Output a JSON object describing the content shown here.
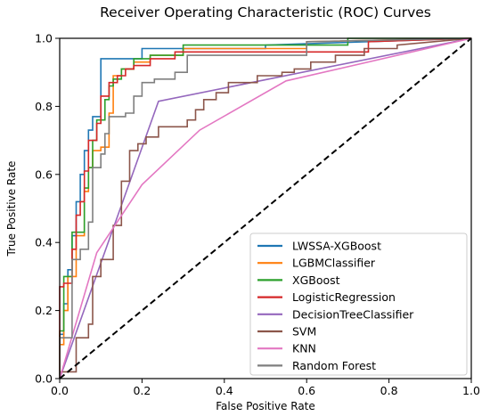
{
  "chart_data": {
    "type": "line",
    "title": "Receiver Operating Characteristic (ROC) Curves",
    "xlabel": "False Positive Rate",
    "ylabel": "True Positive Rate",
    "xlim": [
      0.0,
      1.0
    ],
    "ylim": [
      0.0,
      1.0
    ],
    "x_ticks": [
      "0.0",
      "0.2",
      "0.4",
      "0.6",
      "0.8",
      "1.0"
    ],
    "y_ticks": [
      "0.0",
      "0.2",
      "0.4",
      "0.6",
      "0.8",
      "1.0"
    ],
    "grid": false,
    "legend_position": "lower-right",
    "chance_line": {
      "points": [
        [
          0,
          0
        ],
        [
          1,
          1
        ]
      ],
      "style": "dashed",
      "color": "#000000"
    },
    "series": [
      {
        "name": "LWSSA-XGBoost",
        "color": "#1f77b4",
        "points": [
          [
            0,
            0
          ],
          [
            0,
            0.13
          ],
          [
            0.01,
            0.13
          ],
          [
            0.01,
            0.22
          ],
          [
            0.02,
            0.22
          ],
          [
            0.02,
            0.32
          ],
          [
            0.03,
            0.32
          ],
          [
            0.03,
            0.42
          ],
          [
            0.04,
            0.42
          ],
          [
            0.04,
            0.52
          ],
          [
            0.05,
            0.52
          ],
          [
            0.05,
            0.6
          ],
          [
            0.06,
            0.6
          ],
          [
            0.06,
            0.67
          ],
          [
            0.07,
            0.67
          ],
          [
            0.07,
            0.73
          ],
          [
            0.08,
            0.73
          ],
          [
            0.08,
            0.77
          ],
          [
            0.1,
            0.77
          ],
          [
            0.1,
            0.94
          ],
          [
            0.2,
            0.94
          ],
          [
            0.2,
            0.97
          ],
          [
            0.5,
            0.97
          ],
          [
            0.5,
            0.98
          ],
          [
            1,
            1
          ]
        ]
      },
      {
        "name": "LGBMClassifier",
        "color": "#ff7f0e",
        "points": [
          [
            0,
            0
          ],
          [
            0,
            0.1
          ],
          [
            0.01,
            0.1
          ],
          [
            0.01,
            0.2
          ],
          [
            0.02,
            0.2
          ],
          [
            0.02,
            0.3
          ],
          [
            0.04,
            0.3
          ],
          [
            0.04,
            0.42
          ],
          [
            0.06,
            0.42
          ],
          [
            0.06,
            0.55
          ],
          [
            0.07,
            0.55
          ],
          [
            0.07,
            0.62
          ],
          [
            0.08,
            0.62
          ],
          [
            0.08,
            0.67
          ],
          [
            0.1,
            0.67
          ],
          [
            0.1,
            0.68
          ],
          [
            0.12,
            0.68
          ],
          [
            0.12,
            0.78
          ],
          [
            0.13,
            0.78
          ],
          [
            0.13,
            0.89
          ],
          [
            0.15,
            0.89
          ],
          [
            0.15,
            0.91
          ],
          [
            0.18,
            0.91
          ],
          [
            0.18,
            0.93
          ],
          [
            0.22,
            0.93
          ],
          [
            0.22,
            0.95
          ],
          [
            0.3,
            0.95
          ],
          [
            0.3,
            0.97
          ],
          [
            0.6,
            0.97
          ],
          [
            0.6,
            0.99
          ],
          [
            1,
            1
          ]
        ]
      },
      {
        "name": "XGBoost",
        "color": "#2ca02c",
        "points": [
          [
            0,
            0
          ],
          [
            0,
            0.14
          ],
          [
            0.01,
            0.14
          ],
          [
            0.01,
            0.3
          ],
          [
            0.03,
            0.3
          ],
          [
            0.03,
            0.43
          ],
          [
            0.06,
            0.43
          ],
          [
            0.06,
            0.56
          ],
          [
            0.07,
            0.56
          ],
          [
            0.07,
            0.62
          ],
          [
            0.08,
            0.62
          ],
          [
            0.08,
            0.7
          ],
          [
            0.09,
            0.7
          ],
          [
            0.09,
            0.76
          ],
          [
            0.11,
            0.76
          ],
          [
            0.11,
            0.82
          ],
          [
            0.12,
            0.82
          ],
          [
            0.12,
            0.86
          ],
          [
            0.13,
            0.86
          ],
          [
            0.13,
            0.88
          ],
          [
            0.15,
            0.88
          ],
          [
            0.15,
            0.91
          ],
          [
            0.18,
            0.91
          ],
          [
            0.18,
            0.94
          ],
          [
            0.22,
            0.94
          ],
          [
            0.22,
            0.95
          ],
          [
            0.3,
            0.95
          ],
          [
            0.3,
            0.98
          ],
          [
            0.7,
            0.98
          ],
          [
            0.7,
            1.0
          ],
          [
            1,
            1
          ]
        ]
      },
      {
        "name": "LogisticRegression",
        "color": "#d62728",
        "points": [
          [
            0,
            0
          ],
          [
            0,
            0.27
          ],
          [
            0.01,
            0.27
          ],
          [
            0.01,
            0.28
          ],
          [
            0.03,
            0.28
          ],
          [
            0.03,
            0.38
          ],
          [
            0.04,
            0.38
          ],
          [
            0.04,
            0.48
          ],
          [
            0.05,
            0.48
          ],
          [
            0.05,
            0.52
          ],
          [
            0.06,
            0.52
          ],
          [
            0.06,
            0.61
          ],
          [
            0.07,
            0.61
          ],
          [
            0.07,
            0.7
          ],
          [
            0.09,
            0.7
          ],
          [
            0.09,
            0.75
          ],
          [
            0.1,
            0.75
          ],
          [
            0.1,
            0.83
          ],
          [
            0.12,
            0.83
          ],
          [
            0.12,
            0.87
          ],
          [
            0.14,
            0.87
          ],
          [
            0.14,
            0.89
          ],
          [
            0.16,
            0.89
          ],
          [
            0.16,
            0.91
          ],
          [
            0.18,
            0.91
          ],
          [
            0.18,
            0.92
          ],
          [
            0.22,
            0.92
          ],
          [
            0.22,
            0.94
          ],
          [
            0.28,
            0.94
          ],
          [
            0.28,
            0.96
          ],
          [
            0.75,
            0.96
          ],
          [
            0.75,
            0.99
          ],
          [
            1,
            1
          ]
        ]
      },
      {
        "name": "DecisionTreeClassifier",
        "color": "#9467bd",
        "points": [
          [
            0,
            0
          ],
          [
            0.24,
            0.815
          ],
          [
            1,
            1
          ]
        ]
      },
      {
        "name": "SVM",
        "color": "#8c564b",
        "points": [
          [
            0,
            0
          ],
          [
            0,
            0.02
          ],
          [
            0.04,
            0.02
          ],
          [
            0.04,
            0.12
          ],
          [
            0.07,
            0.12
          ],
          [
            0.07,
            0.16
          ],
          [
            0.08,
            0.16
          ],
          [
            0.08,
            0.3
          ],
          [
            0.1,
            0.3
          ],
          [
            0.1,
            0.35
          ],
          [
            0.13,
            0.35
          ],
          [
            0.13,
            0.45
          ],
          [
            0.15,
            0.45
          ],
          [
            0.15,
            0.58
          ],
          [
            0.17,
            0.58
          ],
          [
            0.17,
            0.67
          ],
          [
            0.19,
            0.67
          ],
          [
            0.19,
            0.69
          ],
          [
            0.21,
            0.69
          ],
          [
            0.21,
            0.71
          ],
          [
            0.24,
            0.71
          ],
          [
            0.24,
            0.74
          ],
          [
            0.31,
            0.74
          ],
          [
            0.31,
            0.76
          ],
          [
            0.33,
            0.76
          ],
          [
            0.33,
            0.79
          ],
          [
            0.35,
            0.79
          ],
          [
            0.35,
            0.82
          ],
          [
            0.38,
            0.82
          ],
          [
            0.38,
            0.84
          ],
          [
            0.41,
            0.84
          ],
          [
            0.41,
            0.87
          ],
          [
            0.48,
            0.87
          ],
          [
            0.48,
            0.89
          ],
          [
            0.54,
            0.89
          ],
          [
            0.54,
            0.9
          ],
          [
            0.57,
            0.9
          ],
          [
            0.57,
            0.91
          ],
          [
            0.61,
            0.91
          ],
          [
            0.61,
            0.93
          ],
          [
            0.67,
            0.93
          ],
          [
            0.67,
            0.95
          ],
          [
            0.74,
            0.95
          ],
          [
            0.74,
            0.97
          ],
          [
            0.82,
            0.97
          ],
          [
            0.82,
            0.98
          ],
          [
            1,
            1
          ]
        ]
      },
      {
        "name": "KNN",
        "color": "#e377c2",
        "points": [
          [
            0,
            0
          ],
          [
            0.09,
            0.37
          ],
          [
            0.2,
            0.57
          ],
          [
            0.34,
            0.73
          ],
          [
            0.55,
            0.875
          ],
          [
            1,
            1
          ]
        ]
      },
      {
        "name": "Random Forest",
        "color": "#7f7f7f",
        "points": [
          [
            0,
            0
          ],
          [
            0,
            0.12
          ],
          [
            0.03,
            0.12
          ],
          [
            0.03,
            0.35
          ],
          [
            0.05,
            0.35
          ],
          [
            0.05,
            0.38
          ],
          [
            0.07,
            0.38
          ],
          [
            0.07,
            0.46
          ],
          [
            0.08,
            0.46
          ],
          [
            0.08,
            0.62
          ],
          [
            0.1,
            0.62
          ],
          [
            0.1,
            0.66
          ],
          [
            0.11,
            0.66
          ],
          [
            0.11,
            0.72
          ],
          [
            0.12,
            0.72
          ],
          [
            0.12,
            0.77
          ],
          [
            0.16,
            0.77
          ],
          [
            0.16,
            0.78
          ],
          [
            0.18,
            0.78
          ],
          [
            0.18,
            0.83
          ],
          [
            0.2,
            0.83
          ],
          [
            0.2,
            0.87
          ],
          [
            0.23,
            0.87
          ],
          [
            0.23,
            0.88
          ],
          [
            0.28,
            0.88
          ],
          [
            0.28,
            0.9
          ],
          [
            0.31,
            0.9
          ],
          [
            0.31,
            0.95
          ],
          [
            0.6,
            0.95
          ],
          [
            0.6,
            0.99
          ],
          [
            1,
            1
          ]
        ]
      }
    ]
  }
}
